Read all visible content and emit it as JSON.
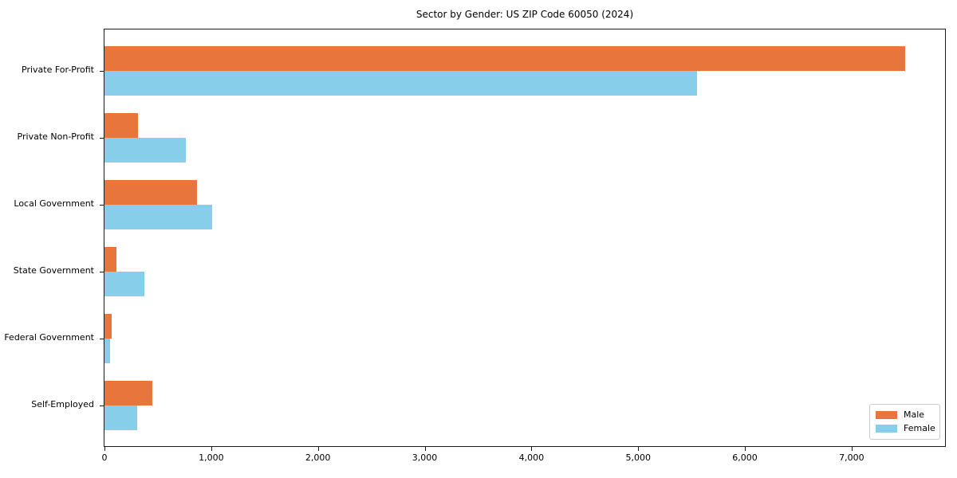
{
  "chart_data": {
    "type": "bar",
    "orientation": "horizontal",
    "title": "Sector by Gender: US ZIP Code 60050 (2024)",
    "categories": [
      "Private For-Profit",
      "Private Non-Profit",
      "Local Government",
      "State Government",
      "Federal Government",
      "Self-Employed"
    ],
    "series": [
      {
        "name": "Male",
        "color": "#e8763c",
        "values": [
          7500,
          315,
          870,
          110,
          70,
          445
        ]
      },
      {
        "name": "Female",
        "color": "#87ceeb",
        "values": [
          5550,
          760,
          1010,
          375,
          55,
          310
        ]
      }
    ],
    "xlabel": "",
    "ylabel": "",
    "xlim": [
      0,
      7875
    ],
    "x_ticks": [
      0,
      1000,
      2000,
      3000,
      4000,
      5000,
      6000,
      7000
    ],
    "x_tick_labels": [
      "0",
      "1,000",
      "2,000",
      "3,000",
      "4,000",
      "5,000",
      "6,000",
      "7,000"
    ],
    "grid": false,
    "legend": {
      "position": "lower right",
      "entries": [
        "Male",
        "Female"
      ]
    }
  }
}
